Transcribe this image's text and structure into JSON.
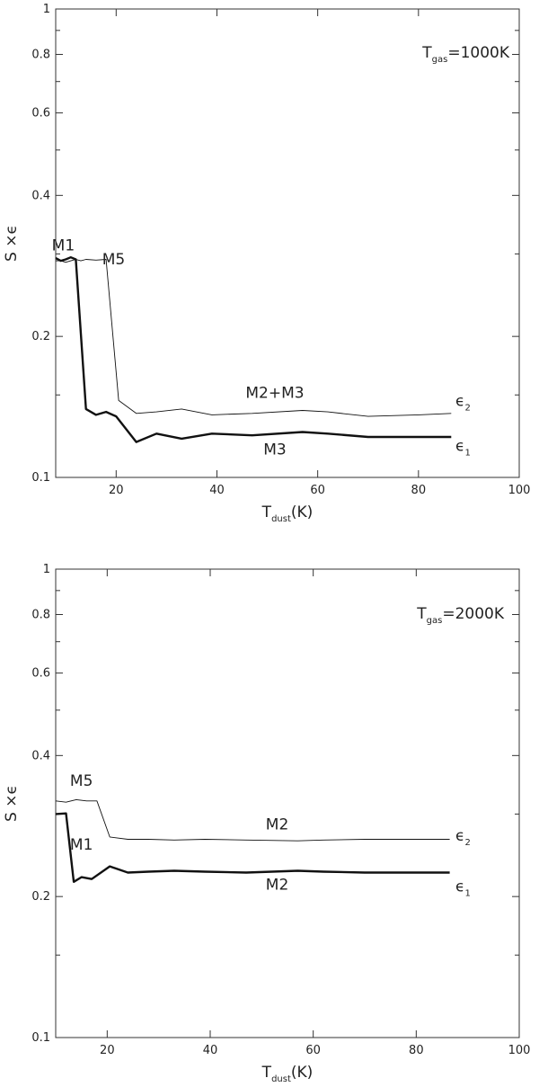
{
  "chart_data": [
    {
      "type": "line",
      "xlabel": {
        "base": "T",
        "sub": "dust",
        "rest": "(K)"
      },
      "ylabel": "S ×ϵ",
      "xlim": [
        8,
        100
      ],
      "ylim": [
        0.1,
        1
      ],
      "yscale": "log",
      "xticks": [
        20,
        40,
        60,
        80,
        100
      ],
      "yticks": [
        0.1,
        0.2,
        0.4,
        0.6,
        0.8,
        1
      ],
      "tick_labels_x": [
        "20",
        "40",
        "60",
        "80",
        "100"
      ],
      "tick_labels_y": [
        "0.1",
        "0.2",
        "0.4",
        "0.6",
        "0.8",
        "1"
      ],
      "minor_yticks": [
        0.15,
        0.3,
        0.5,
        0.7,
        0.9
      ],
      "annotation_temp": {
        "base": "T",
        "sub": "gas",
        "rest": "=1000K"
      },
      "series": [
        {
          "name": "ϵ2",
          "style": "thin",
          "x": [
            8,
            9,
            10,
            11,
            12,
            13,
            14,
            16,
            18,
            20.5,
            24,
            28,
            33,
            39,
            47,
            57,
            62,
            70,
            80,
            86.5
          ],
          "y": [
            0.29,
            0.29,
            0.288,
            0.29,
            0.292,
            0.29,
            0.292,
            0.291,
            0.292,
            0.146,
            0.137,
            0.138,
            0.14,
            0.136,
            0.137,
            0.139,
            0.138,
            0.135,
            0.136,
            0.137
          ]
        },
        {
          "name": "ϵ1",
          "style": "thick",
          "x": [
            8,
            9,
            10,
            11,
            12,
            14,
            16,
            18,
            20,
            24,
            28,
            33,
            39,
            47,
            57,
            62,
            70,
            80,
            86.5
          ],
          "y": [
            0.294,
            0.29,
            0.292,
            0.295,
            0.292,
            0.14,
            0.136,
            0.138,
            0.135,
            0.119,
            0.124,
            0.121,
            0.124,
            0.123,
            0.125,
            0.124,
            0.122,
            0.122,
            0.122
          ]
        }
      ],
      "annotations": [
        {
          "text": "M1",
          "x": 9.5,
          "y": 0.305
        },
        {
          "text": "M5",
          "x": 19.5,
          "y": 0.285
        },
        {
          "text": "M2+M3",
          "x": 51.5,
          "y": 0.148
        },
        {
          "text": "M3",
          "x": 51.5,
          "y": 0.112
        }
      ],
      "end_labels": [
        {
          "base": "ϵ",
          "sub": "2",
          "y": 0.142
        },
        {
          "base": "ϵ",
          "sub": "1",
          "y": 0.114
        }
      ]
    },
    {
      "type": "line",
      "xlabel": {
        "base": "T",
        "sub": "dust",
        "rest": "(K)"
      },
      "ylabel": "S ×ϵ",
      "xlim": [
        10,
        100
      ],
      "ylim": [
        0.1,
        1
      ],
      "yscale": "log",
      "xticks": [
        20,
        40,
        60,
        80,
        100
      ],
      "yticks": [
        0.1,
        0.2,
        0.4,
        0.6,
        0.8,
        1
      ],
      "tick_labels_x": [
        "20",
        "40",
        "60",
        "80",
        "100"
      ],
      "tick_labels_y": [
        "0.1",
        "0.2",
        "0.4",
        "0.6",
        "0.8",
        "1"
      ],
      "minor_yticks": [
        0.15,
        0.3,
        0.5,
        0.7,
        0.9
      ],
      "annotation_temp": {
        "base": "T",
        "sub": "gas",
        "rest": "=2000K"
      },
      "series": [
        {
          "name": "ϵ2",
          "style": "thin",
          "x": [
            10,
            12,
            14,
            16,
            18,
            20.5,
            24,
            28,
            33,
            39,
            47,
            57,
            62,
            70,
            80,
            86.5
          ],
          "y": [
            0.32,
            0.318,
            0.322,
            0.32,
            0.32,
            0.268,
            0.265,
            0.265,
            0.264,
            0.265,
            0.264,
            0.263,
            0.264,
            0.265,
            0.265,
            0.265
          ]
        },
        {
          "name": "ϵ1",
          "style": "thick",
          "x": [
            10,
            12,
            13.5,
            15,
            17,
            20.5,
            24,
            28,
            33,
            39,
            47,
            57,
            62,
            70,
            80,
            86.5
          ],
          "y": [
            0.3,
            0.301,
            0.215,
            0.22,
            0.218,
            0.232,
            0.225,
            0.226,
            0.227,
            0.226,
            0.225,
            0.227,
            0.226,
            0.225,
            0.225,
            0.225
          ]
        }
      ],
      "annotations": [
        {
          "text": "M5",
          "x": 15,
          "y": 0.345
        },
        {
          "text": "M1",
          "x": 15,
          "y": 0.252
        },
        {
          "text": "M2",
          "x": 53,
          "y": 0.278
        },
        {
          "text": "M2",
          "x": 53,
          "y": 0.207
        }
      ],
      "end_labels": [
        {
          "base": "ϵ",
          "sub": "2",
          "y": 0.263
        },
        {
          "base": "ϵ",
          "sub": "1",
          "y": 0.205
        }
      ]
    }
  ]
}
